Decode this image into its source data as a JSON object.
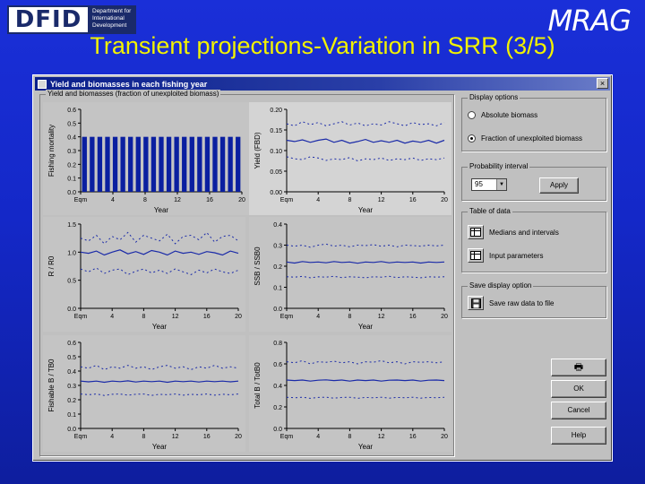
{
  "slide": {
    "title": "Transient projections-Variation in SRR (3/5)",
    "dfid_logo": {
      "mark": "DFID",
      "lines": [
        "Department for",
        "International",
        "Development"
      ]
    },
    "mrag_logo": "MRAG"
  },
  "window": {
    "title": "Yield and biomasses in each fishing year",
    "close_label": "×",
    "plots_group_label": "Yield and biomasses (fraction of unexploited biomass)"
  },
  "options": {
    "display_label": "Display options",
    "radio_absolute": "Absolute biomass",
    "radio_fraction": "Fraction of unexploited biomass",
    "selected": "fraction",
    "prob_label": "Probability interval",
    "prob_value": "95",
    "apply_label": "Apply",
    "table_label": "Table of data",
    "medians_label": "Medians and intervals",
    "input_label": "Input parameters",
    "save_group_label": "Save display option",
    "save_label": "Save raw data to file",
    "print_label": "🖶",
    "ok_label": "OK",
    "cancel_label": "Cancel",
    "help_label": "Help"
  },
  "chart_data": [
    {
      "type": "bar",
      "ylabel": "Fishing mortality",
      "xlabel": "Year",
      "x_ticks": [
        "Eqm",
        "4",
        "8",
        "12",
        "16",
        "20"
      ],
      "y_ticks": [
        "0.0",
        "0.1",
        "0.2",
        "0.3",
        "0.4",
        "0.5",
        "0.6"
      ],
      "ylim": [
        0,
        0.6
      ],
      "categories": [
        "Eqm",
        "1",
        "2",
        "3",
        "4",
        "5",
        "6",
        "7",
        "8",
        "9",
        "10",
        "11",
        "12",
        "13",
        "14",
        "15",
        "16",
        "17",
        "18",
        "19",
        "20"
      ],
      "values": [
        0.4,
        0.4,
        0.4,
        0.4,
        0.4,
        0.4,
        0.4,
        0.4,
        0.4,
        0.4,
        0.4,
        0.4,
        0.4,
        0.4,
        0.4,
        0.4,
        0.4,
        0.4,
        0.4,
        0.4,
        0.4
      ]
    },
    {
      "type": "line",
      "ylabel": "Yield (FBD)",
      "xlabel": "Year",
      "x_ticks": [
        "Eqm",
        "4",
        "8",
        "12",
        "16",
        "20"
      ],
      "y_ticks": [
        "0.00",
        "0.05",
        "0.10",
        "0.15",
        "0.20"
      ],
      "ylim": [
        0,
        0.2
      ],
      "x": [
        0,
        1,
        2,
        3,
        4,
        5,
        6,
        7,
        8,
        9,
        10,
        11,
        12,
        13,
        14,
        15,
        16,
        17,
        18,
        19,
        20
      ],
      "series": [
        {
          "style": "dashed",
          "values": [
            0.165,
            0.16,
            0.17,
            0.163,
            0.168,
            0.16,
            0.165,
            0.17,
            0.162,
            0.167,
            0.16,
            0.165,
            0.162,
            0.17,
            0.165,
            0.16,
            0.168,
            0.163,
            0.165,
            0.16,
            0.168
          ]
        },
        {
          "style": "solid",
          "values": [
            0.125,
            0.122,
            0.126,
            0.12,
            0.125,
            0.128,
            0.12,
            0.125,
            0.118,
            0.122,
            0.127,
            0.12,
            0.124,
            0.12,
            0.125,
            0.118,
            0.123,
            0.12,
            0.125,
            0.118,
            0.125
          ]
        },
        {
          "style": "dashed",
          "values": [
            0.085,
            0.08,
            0.078,
            0.085,
            0.082,
            0.076,
            0.08,
            0.078,
            0.083,
            0.075,
            0.08,
            0.078,
            0.082,
            0.076,
            0.08,
            0.078,
            0.082,
            0.076,
            0.08,
            0.078,
            0.082
          ]
        }
      ]
    },
    {
      "type": "line",
      "ylabel": "R / R0",
      "xlabel": "Year",
      "x_ticks": [
        "Eqm",
        "4",
        "8",
        "12",
        "16",
        "20"
      ],
      "y_ticks": [
        "0.0",
        "0.5",
        "1.0",
        "1.5"
      ],
      "ylim": [
        0,
        1.5
      ],
      "x": [
        0,
        1,
        2,
        3,
        4,
        5,
        6,
        7,
        8,
        9,
        10,
        11,
        12,
        13,
        14,
        15,
        16,
        17,
        18,
        19,
        20
      ],
      "series": [
        {
          "style": "dashed",
          "values": [
            1.25,
            1.2,
            1.3,
            1.15,
            1.28,
            1.22,
            1.35,
            1.18,
            1.3,
            1.25,
            1.2,
            1.32,
            1.15,
            1.28,
            1.3,
            1.22,
            1.35,
            1.18,
            1.28,
            1.3,
            1.2
          ]
        },
        {
          "style": "solid",
          "values": [
            1.0,
            0.98,
            1.02,
            0.95,
            1.0,
            1.04,
            0.97,
            1.01,
            0.96,
            1.03,
            1.0,
            0.95,
            1.02,
            0.98,
            1.0,
            0.96,
            1.01,
            0.99,
            0.95,
            1.02,
            0.98
          ]
        },
        {
          "style": "dashed",
          "values": [
            0.7,
            0.65,
            0.72,
            0.62,
            0.68,
            0.7,
            0.6,
            0.66,
            0.7,
            0.63,
            0.68,
            0.62,
            0.7,
            0.65,
            0.6,
            0.68,
            0.63,
            0.7,
            0.65,
            0.62,
            0.68
          ]
        }
      ]
    },
    {
      "type": "line",
      "ylabel": "SSB / SSB0",
      "xlabel": "Year",
      "x_ticks": [
        "Eqm",
        "4",
        "8",
        "12",
        "16",
        "20"
      ],
      "y_ticks": [
        "0.0",
        "0.1",
        "0.2",
        "0.3",
        "0.4"
      ],
      "ylim": [
        0,
        0.4
      ],
      "x": [
        0,
        1,
        2,
        3,
        4,
        5,
        6,
        7,
        8,
        9,
        10,
        11,
        12,
        13,
        14,
        15,
        16,
        17,
        18,
        19,
        20
      ],
      "series": [
        {
          "style": "dashed",
          "values": [
            0.3,
            0.295,
            0.3,
            0.29,
            0.3,
            0.305,
            0.295,
            0.3,
            0.292,
            0.3,
            0.298,
            0.302,
            0.295,
            0.3,
            0.292,
            0.3,
            0.298,
            0.295,
            0.3,
            0.296,
            0.3
          ]
        },
        {
          "style": "solid",
          "values": [
            0.22,
            0.215,
            0.222,
            0.218,
            0.22,
            0.216,
            0.222,
            0.218,
            0.22,
            0.214,
            0.22,
            0.218,
            0.222,
            0.216,
            0.22,
            0.218,
            0.22,
            0.215,
            0.22,
            0.218,
            0.22
          ]
        },
        {
          "style": "dashed",
          "values": [
            0.15,
            0.148,
            0.152,
            0.145,
            0.15,
            0.148,
            0.152,
            0.146,
            0.15,
            0.148,
            0.145,
            0.15,
            0.148,
            0.152,
            0.146,
            0.15,
            0.148,
            0.145,
            0.15,
            0.148,
            0.15
          ]
        }
      ]
    },
    {
      "type": "line",
      "ylabel": "Fishable B / TB0",
      "xlabel": "Year",
      "x_ticks": [
        "Eqm",
        "4",
        "8",
        "12",
        "16",
        "20"
      ],
      "y_ticks": [
        "0.0",
        "0.1",
        "0.2",
        "0.3",
        "0.4",
        "0.5",
        "0.6"
      ],
      "ylim": [
        0,
        0.6
      ],
      "x": [
        0,
        1,
        2,
        3,
        4,
        5,
        6,
        7,
        8,
        9,
        10,
        11,
        12,
        13,
        14,
        15,
        16,
        17,
        18,
        19,
        20
      ],
      "series": [
        {
          "style": "dashed",
          "values": [
            0.43,
            0.42,
            0.44,
            0.41,
            0.43,
            0.42,
            0.44,
            0.42,
            0.43,
            0.41,
            0.43,
            0.44,
            0.42,
            0.43,
            0.41,
            0.43,
            0.42,
            0.44,
            0.42,
            0.43,
            0.42
          ]
        },
        {
          "style": "solid",
          "values": [
            0.33,
            0.325,
            0.33,
            0.322,
            0.33,
            0.326,
            0.332,
            0.324,
            0.33,
            0.326,
            0.33,
            0.322,
            0.33,
            0.326,
            0.33,
            0.324,
            0.33,
            0.326,
            0.33,
            0.325,
            0.33
          ]
        },
        {
          "style": "dashed",
          "values": [
            0.24,
            0.235,
            0.24,
            0.23,
            0.238,
            0.24,
            0.232,
            0.238,
            0.24,
            0.23,
            0.238,
            0.235,
            0.24,
            0.232,
            0.238,
            0.235,
            0.24,
            0.232,
            0.238,
            0.235,
            0.24
          ]
        }
      ]
    },
    {
      "type": "line",
      "ylabel": "Total B / TotB0",
      "xlabel": "Year",
      "x_ticks": [
        "Eqm",
        "4",
        "8",
        "12",
        "16",
        "20"
      ],
      "y_ticks": [
        "0.0",
        "0.2",
        "0.4",
        "0.6",
        "0.8"
      ],
      "ylim": [
        0,
        0.8
      ],
      "x": [
        0,
        1,
        2,
        3,
        4,
        5,
        6,
        7,
        8,
        9,
        10,
        11,
        12,
        13,
        14,
        15,
        16,
        17,
        18,
        19,
        20
      ],
      "series": [
        {
          "style": "dashed",
          "values": [
            0.62,
            0.61,
            0.63,
            0.6,
            0.62,
            0.615,
            0.625,
            0.61,
            0.62,
            0.6,
            0.62,
            0.615,
            0.63,
            0.61,
            0.62,
            0.6,
            0.62,
            0.615,
            0.62,
            0.61,
            0.62
          ]
        },
        {
          "style": "solid",
          "values": [
            0.45,
            0.445,
            0.45,
            0.44,
            0.448,
            0.452,
            0.445,
            0.45,
            0.44,
            0.45,
            0.445,
            0.45,
            0.44,
            0.448,
            0.45,
            0.445,
            0.45,
            0.44,
            0.448,
            0.45,
            0.445
          ]
        },
        {
          "style": "dashed",
          "values": [
            0.29,
            0.285,
            0.29,
            0.28,
            0.288,
            0.29,
            0.282,
            0.288,
            0.29,
            0.28,
            0.288,
            0.285,
            0.29,
            0.282,
            0.288,
            0.285,
            0.29,
            0.282,
            0.288,
            0.285,
            0.29
          ]
        }
      ]
    }
  ]
}
